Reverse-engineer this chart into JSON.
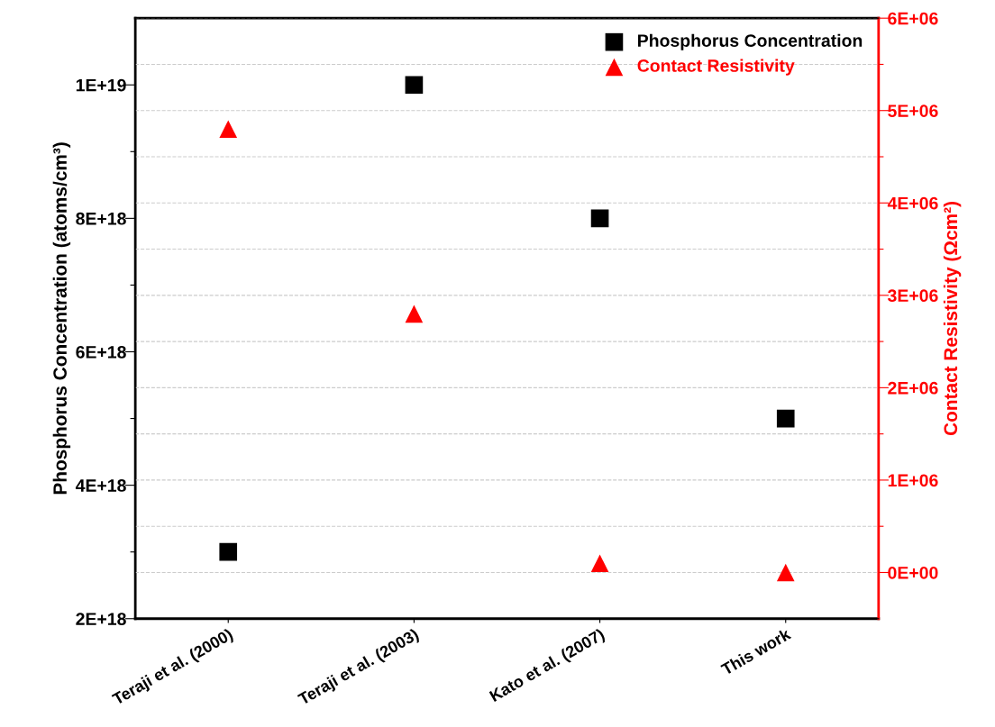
{
  "chart_data": {
    "type": "scatter",
    "categories": [
      "Teraji et al. (2000)",
      "Teraji et al. (2003)",
      "Kato et al. (2007)",
      "This work"
    ],
    "series": [
      {
        "name": "Phosphorus Concentration",
        "color": "#000000",
        "marker": "square",
        "values": [
          3e+18,
          1e+19,
          8e+18,
          5e+18
        ]
      },
      {
        "name": "Contact Resistivity",
        "color": "#ff0000",
        "marker": "triangle",
        "axis": "y2",
        "values": [
          4800000.0,
          2800000.0,
          100000.0,
          0
        ]
      }
    ],
    "ylabel": "Phosphorus Concentration (atoms/cm³)",
    "y2label": "Contact Resistivity (Ωcm²)",
    "ylim": [
      2e+18,
      1.1e+19
    ],
    "yticks": [
      {
        "value": 2e+18,
        "label": "2E+18"
      },
      {
        "value": 3e+18,
        "label": null
      },
      {
        "value": 4e+18,
        "label": "4E+18"
      },
      {
        "value": 5e+18,
        "label": null
      },
      {
        "value": 6e+18,
        "label": "6E+18"
      },
      {
        "value": 7e+18,
        "label": null
      },
      {
        "value": 8e+18,
        "label": "8E+18"
      },
      {
        "value": 9e+18,
        "label": null
      },
      {
        "value": 1e+19,
        "label": "1E+19"
      }
    ],
    "y2lim": [
      -500000.0,
      6000000.0
    ],
    "y2ticks": [
      {
        "value": 0,
        "label": "0E+00"
      },
      {
        "value": 500000.0,
        "label": null
      },
      {
        "value": 1000000.0,
        "label": "1E+06"
      },
      {
        "value": 1500000.0,
        "label": null
      },
      {
        "value": 2000000.0,
        "label": "2E+06"
      },
      {
        "value": 2500000.0,
        "label": null
      },
      {
        "value": 3000000.0,
        "label": "3E+06"
      },
      {
        "value": 3500000.0,
        "label": null
      },
      {
        "value": 4000000.0,
        "label": "4E+06"
      },
      {
        "value": 4500000.0,
        "label": null
      },
      {
        "value": 5000000.0,
        "label": "5E+06"
      },
      {
        "value": 5500000.0,
        "label": null
      },
      {
        "value": 6000000.0,
        "label": "6E+06"
      }
    ],
    "grid": "y2",
    "legend": "top right"
  }
}
